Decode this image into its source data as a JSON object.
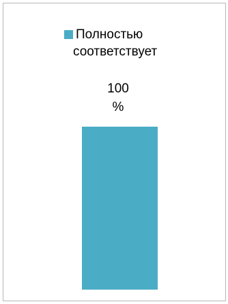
{
  "chart_data": {
    "type": "bar",
    "title": "",
    "xlabel": "",
    "ylabel": "",
    "categories": [
      ""
    ],
    "series": [
      {
        "name": "Полностью соответствует",
        "name_lines": [
          "Полностью",
          "соответствует"
        ],
        "values": [
          100
        ],
        "data_labels": [
          {
            "number": "100",
            "unit": "%"
          }
        ],
        "color": "#4bacc6"
      }
    ],
    "ylim": [
      0,
      100
    ],
    "grid": false,
    "legend_position": "top"
  }
}
